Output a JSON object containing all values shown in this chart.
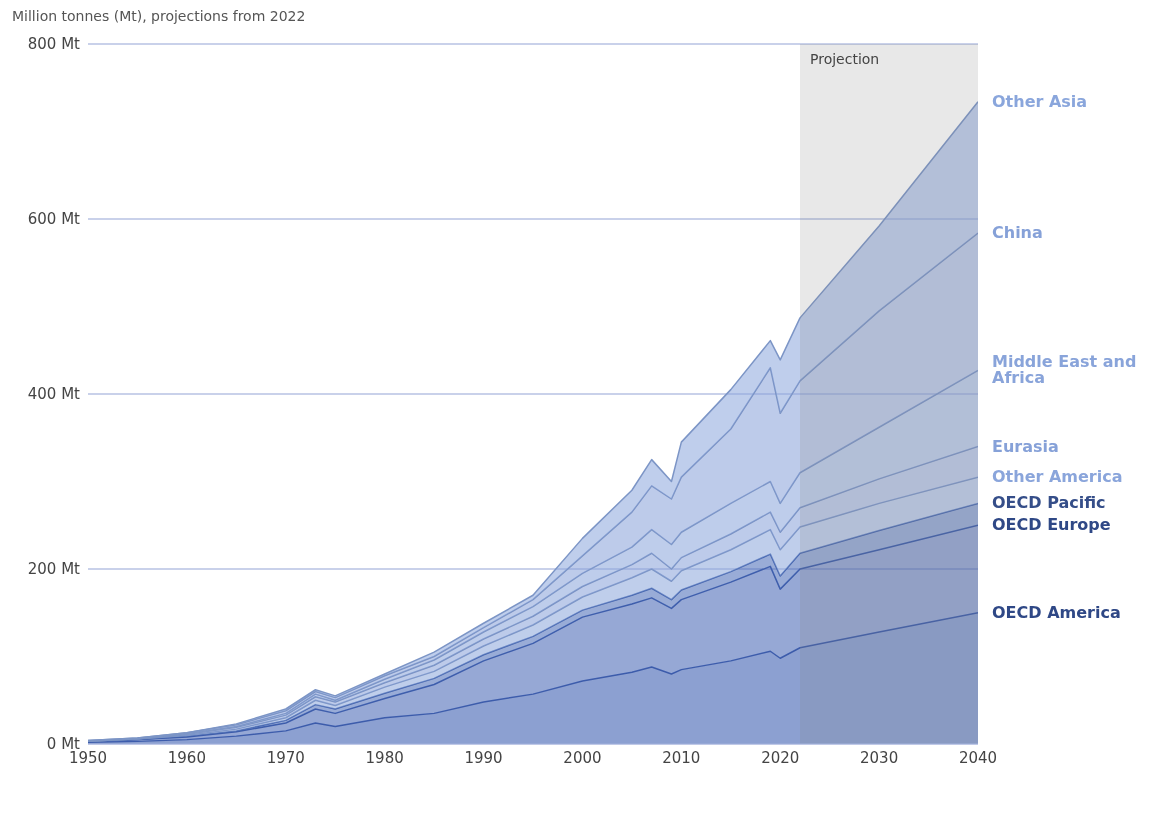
{
  "chart_data": {
    "type": "area",
    "stacked": true,
    "ylabel": "Million tonnes (Mt), projections from 2022",
    "x": [
      1950,
      1955,
      1960,
      1965,
      1970,
      1973,
      1975,
      1980,
      1985,
      1990,
      1995,
      2000,
      2005,
      2007,
      2009,
      2010,
      2015,
      2019,
      2020,
      2022,
      2030,
      2040
    ],
    "series": [
      {
        "name": "OECD America",
        "color": "#3f60b2",
        "values": [
          2,
          3,
          5,
          9,
          15,
          24,
          20,
          30,
          35,
          48,
          57,
          72,
          82,
          88,
          80,
          85,
          95,
          106,
          98,
          110,
          128,
          150
        ]
      },
      {
        "name": "OECD Europe",
        "color": "#3f60b2",
        "values": [
          1,
          2,
          3,
          5,
          9,
          16,
          15,
          22,
          33,
          47,
          58,
          73,
          78,
          79,
          75,
          80,
          90,
          97,
          79,
          90,
          94,
          100
        ]
      },
      {
        "name": "OECD Pacific",
        "color": "#4668b6",
        "values": [
          0,
          0,
          1,
          1,
          3,
          5,
          5,
          6,
          7,
          7,
          8,
          8,
          10,
          11,
          10,
          11,
          12,
          14,
          15,
          18,
          22,
          25
        ]
      },
      {
        "name": "Other America",
        "color": "#8aa5db",
        "values": [
          0,
          1,
          1,
          2,
          3,
          5,
          4,
          7,
          8,
          10,
          13,
          15,
          20,
          22,
          21,
          22,
          25,
          28,
          30,
          30,
          31,
          30
        ]
      },
      {
        "name": "Eurasia",
        "color": "#86a1d8",
        "values": [
          0,
          0,
          1,
          2,
          3,
          4,
          4,
          5,
          7,
          8,
          10,
          12,
          15,
          18,
          14,
          15,
          18,
          20,
          20,
          22,
          28,
          35
        ]
      },
      {
        "name": "Middle East and Africa",
        "color": "#89a4da",
        "values": [
          0,
          0,
          1,
          1,
          2,
          3,
          2,
          4,
          6,
          8,
          11,
          15,
          20,
          27,
          28,
          29,
          35,
          35,
          33,
          40,
          59,
          87
        ]
      },
      {
        "name": "China",
        "color": "#86a1d8",
        "values": [
          1,
          1,
          1,
          2,
          3,
          3,
          3,
          4,
          4,
          5,
          8,
          20,
          40,
          50,
          52,
          63,
          85,
          130,
          103,
          105,
          133,
          157
        ]
      },
      {
        "name": "Other Asia",
        "color": "#8aa6dc",
        "values": [
          0,
          0,
          0,
          1,
          2,
          2,
          2,
          2,
          5,
          5,
          5,
          20,
          25,
          30,
          20,
          40,
          45,
          31,
          61,
          72,
          97,
          150
        ]
      }
    ],
    "xlim": [
      1950,
      2040
    ],
    "xticks": [
      1950,
      1960,
      1970,
      1980,
      1990,
      2000,
      2010,
      2020,
      2030,
      2040
    ],
    "ylim": [
      0,
      800
    ],
    "yticks": [
      {
        "value": 0,
        "label": "0 Mt"
      },
      {
        "value": 200,
        "label": "200 Mt"
      },
      {
        "value": 400,
        "label": "400 Mt"
      },
      {
        "value": 600,
        "label": "600 Mt"
      },
      {
        "value": 800,
        "label": "800 Mt"
      }
    ],
    "grid": "y",
    "bands": [
      {
        "axis": "x",
        "from": 2022,
        "to": 2040,
        "label": "Projection",
        "color": "#808080"
      }
    ]
  }
}
